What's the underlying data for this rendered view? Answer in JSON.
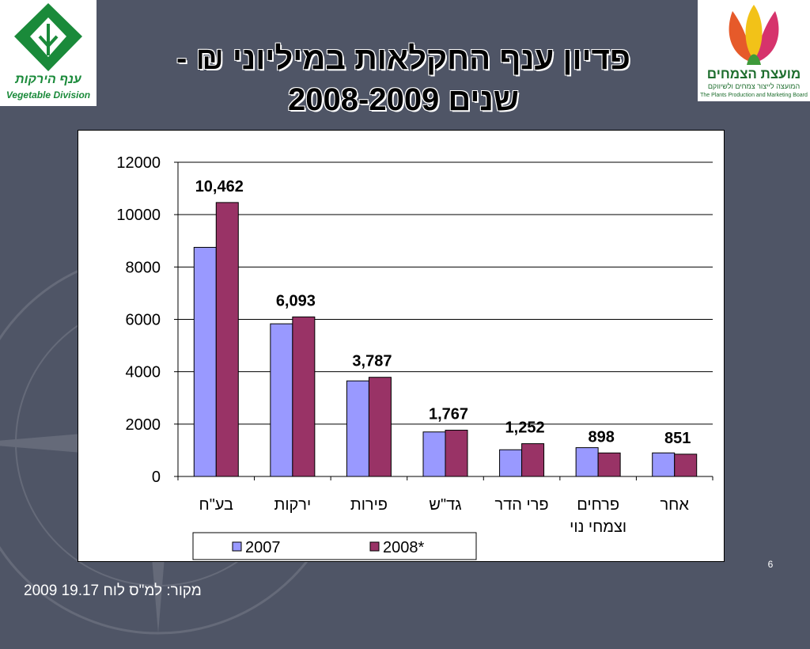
{
  "slide": {
    "title_line1": "פדיון ענף החקלאות במיליוני ₪ -",
    "title_line2": "שנים 2008-2009",
    "page_number": "6",
    "source": "מקור: למ\"ס לוח 19.17 2009"
  },
  "logos": {
    "left_hebrew": "ענף הירקות",
    "left_english": "Vegetable Division",
    "right_hebrew": "מועצת הצמחים",
    "right_subtitle": "המועצה לייצור צמחים ולשיווקם",
    "right_english": "The Plants Production and Marketing Board"
  },
  "colors": {
    "background": "#4f5566",
    "series_2007": "#9999ff",
    "series_2008": "#993366",
    "logo_green": "#1a8a3a"
  },
  "chart_data": {
    "type": "bar",
    "title": "",
    "xlabel": "",
    "ylabel": "",
    "ylim": [
      0,
      12000
    ],
    "yticks": [
      0,
      2000,
      4000,
      6000,
      8000,
      10000,
      12000
    ],
    "grid": true,
    "legend_position": "bottom",
    "categories": [
      [
        "בע\"ח"
      ],
      [
        "ירקות"
      ],
      [
        "פירות"
      ],
      [
        "גד\"ש"
      ],
      [
        "פרי הדר"
      ],
      [
        "פרחים",
        "וצמחי נוי"
      ],
      [
        "אחר"
      ]
    ],
    "series": [
      {
        "name": "2007",
        "values": [
          8750,
          5830,
          3650,
          1700,
          1020,
          1100,
          900
        ]
      },
      {
        "name": "2008*",
        "values": [
          10462,
          6093,
          3787,
          1767,
          1252,
          898,
          851
        ]
      }
    ],
    "data_labels": [
      "10,462",
      "6,093",
      "3,787",
      "1,767",
      "1,252",
      "898",
      "851"
    ]
  }
}
